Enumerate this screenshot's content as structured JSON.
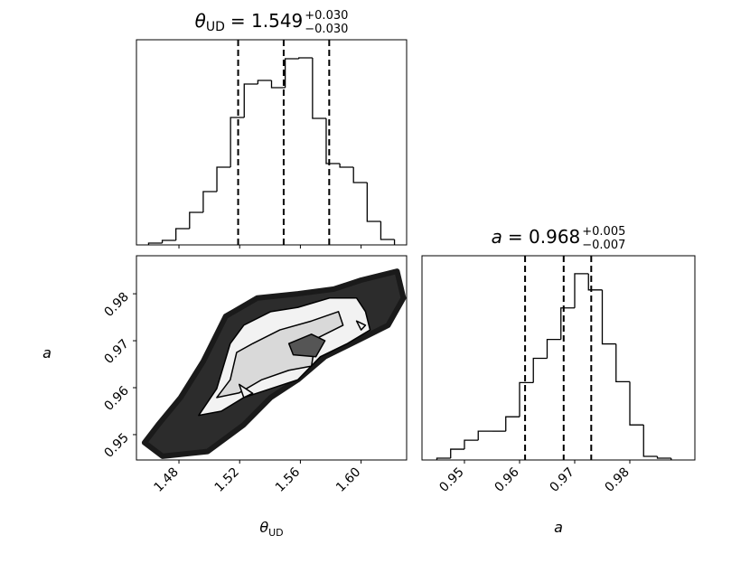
{
  "chart_data": [
    {
      "type": "histogram",
      "title": {
        "symbol": "θ",
        "subscript": "UD",
        "text": "= 1.549",
        "upper": "+0.030",
        "lower": "−0.030"
      },
      "bins": [
        1.46,
        1.469,
        1.478,
        1.487,
        1.496,
        1.505,
        1.514,
        1.523,
        1.532,
        1.541,
        1.55,
        1.559,
        1.568,
        1.577,
        1.586,
        1.595,
        1.604,
        1.613,
        1.622
      ],
      "values": [
        2,
        5,
        18,
        36,
        59,
        86,
        141,
        178,
        182,
        174,
        206,
        207,
        140,
        90,
        86,
        69,
        26,
        6
      ],
      "quantiles": [
        1.519,
        1.549,
        1.579
      ],
      "xlim": [
        1.452,
        1.63
      ],
      "ylim": [
        0,
        227
      ],
      "color": "#000000"
    },
    {
      "type": "contour",
      "xlabel": {
        "symbol": "θ",
        "subscript": "UD"
      },
      "ylabel": "a",
      "xlim": [
        1.452,
        1.63
      ],
      "ylim": [
        0.9446,
        0.9881
      ],
      "xticks": [
        1.48,
        1.52,
        1.56,
        {
          "value": 1.6,
          "label": "1.60"
        }
      ],
      "yticks": [
        0.95,
        0.96,
        0.97,
        0.98
      ],
      "series": [
        {
          "x": [
            1.4573,
            1.4663,
            1.4811,
            1.496,
            1.5108,
            1.5316,
            1.5584,
            1.5821,
            1.6,
            1.6237,
            1.6279,
            1.6178,
            1.6,
            1.5762,
            1.5584,
            1.5405,
            1.5227,
            1.4989,
            1.4692
          ],
          "y": [
            0.9483,
            0.9521,
            0.9579,
            0.9656,
            0.9752,
            0.9791,
            0.98,
            0.981,
            0.9829,
            0.9848,
            0.9791,
            0.9733,
            0.9704,
            0.9666,
            0.9617,
            0.9579,
            0.9521,
            0.9464,
            0.9454
          ],
          "color": "#1a1a1a",
          "outline": false
        },
        {
          "x": [
            1.493,
            1.5049,
            1.5138,
            1.5227,
            1.5405,
            1.5584,
            1.5792,
            1.597,
            1.6029,
            1.6059,
            1.591,
            1.5732,
            1.5584,
            1.5405,
            1.5227,
            1.5079
          ],
          "y": [
            0.9541,
            0.9598,
            0.9694,
            0.9733,
            0.9762,
            0.9771,
            0.9791,
            0.9791,
            0.9762,
            0.9723,
            0.9694,
            0.9666,
            0.9617,
            0.9598,
            0.9579,
            0.955
          ],
          "color": "#f2f2f2",
          "outline": true
        },
        {
          "x": [
            1.5049,
            1.5138,
            1.518,
            1.5286,
            1.5465,
            1.5673,
            1.5851,
            1.5881,
            1.5702,
            1.5673,
            1.5524,
            1.5346,
            1.5197
          ],
          "y": [
            0.9579,
            0.9617,
            0.9675,
            0.9694,
            0.9723,
            0.9742,
            0.9762,
            0.9733,
            0.9704,
            0.9646,
            0.9637,
            0.9617,
            0.9589
          ],
          "color": "#d9d9d9",
          "outline": true
        },
        {
          "x": [
            1.5524,
            1.5673,
            1.5762,
            1.5702,
            1.5553
          ],
          "y": [
            0.9694,
            0.9714,
            0.97,
            0.9666,
            0.967
          ],
          "color": "#555555",
          "outline": true
        },
        {
          "x": [
            1.5197,
            1.5286,
            1.5227
          ],
          "y": [
            0.9607,
            0.9588,
            0.9579
          ],
          "color": "#f2f2f2",
          "outline": true
        },
        {
          "x": [
            1.597,
            1.6029,
            1.6
          ],
          "y": [
            0.9742,
            0.9733,
            0.9723
          ],
          "color": "#f2f2f2",
          "outline": true
        }
      ]
    },
    {
      "type": "histogram",
      "title": {
        "symbol": "a",
        "text": "= 0.968",
        "upper": "+0.005",
        "lower": "−0.007"
      },
      "xlabel": "a",
      "bins": [
        0.945,
        0.9475,
        0.95,
        0.9525,
        0.955,
        0.9575,
        0.96,
        0.9625,
        0.965,
        0.9675,
        0.97,
        0.9725,
        0.975,
        0.9775,
        0.98,
        0.9825,
        0.985,
        0.9875
      ],
      "values": [
        2,
        12,
        22,
        32,
        32,
        48,
        86,
        113,
        134,
        169,
        207,
        189,
        129,
        87,
        39,
        4,
        2
      ],
      "quantiles": [
        0.961,
        0.968,
        0.973
      ],
      "xlim": [
        0.9423,
        0.9918
      ],
      "ylim": [
        0,
        227
      ],
      "xticks": [
        0.95,
        0.96,
        0.97,
        0.98
      ],
      "color": "#000000"
    }
  ]
}
